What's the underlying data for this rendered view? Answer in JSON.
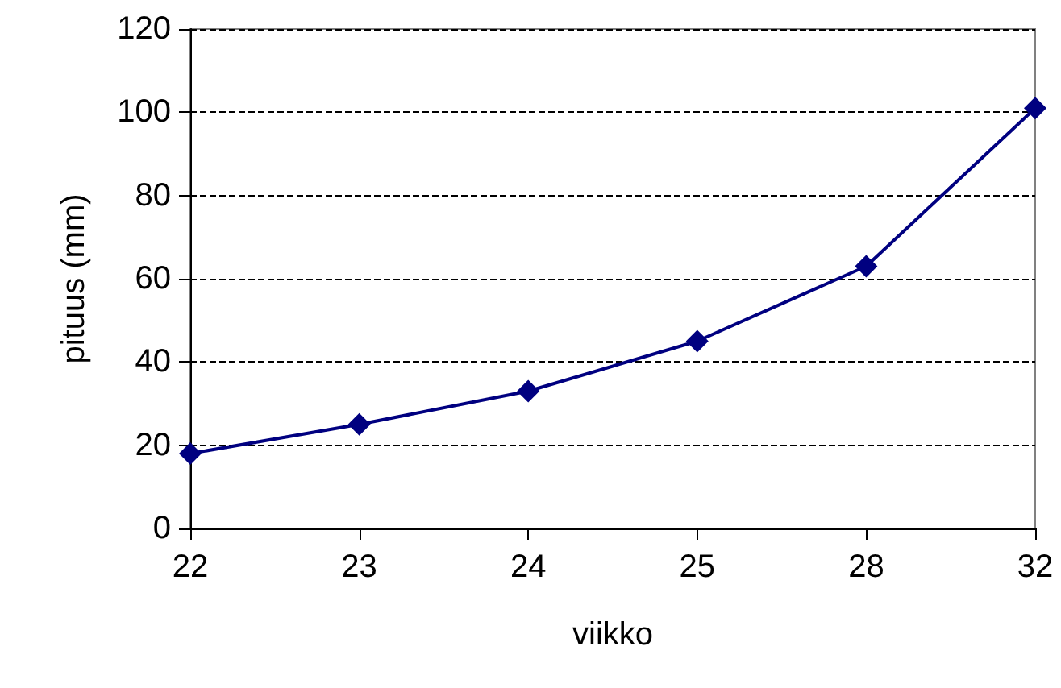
{
  "chart_data": {
    "type": "line",
    "xlabel": "viikko",
    "ylabel": "pituus (mm)",
    "categories": [
      "22",
      "23",
      "24",
      "25",
      "28",
      "32"
    ],
    "series": [
      {
        "color": "#000080",
        "values": [
          18,
          25,
          33,
          45,
          63,
          101
        ]
      }
    ],
    "ylim": [
      0,
      120
    ],
    "yticks": [
      0,
      20,
      40,
      60,
      80,
      100,
      120
    ],
    "grid": "y",
    "marker": "diamond",
    "line_style": "solid"
  }
}
